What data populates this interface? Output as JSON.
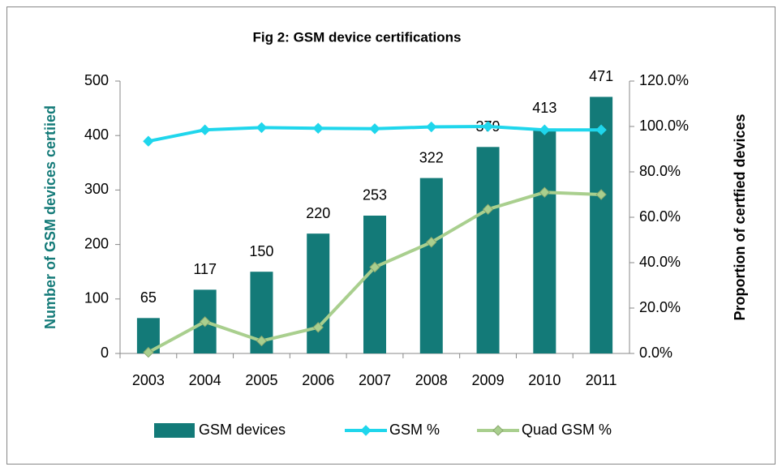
{
  "chart_data": {
    "type": "bar",
    "title": "Fig 2: GSM device certifications",
    "y_label": "Number of GSM devices certiied",
    "y2_label": "Proportion of certfied devices",
    "categories": [
      "2003",
      "2004",
      "2005",
      "2006",
      "2007",
      "2008",
      "2009",
      "2010",
      "2011"
    ],
    "series": [
      {
        "name": "GSM devices",
        "type": "bar",
        "color": "#137a78",
        "values": [
          65,
          117,
          150,
          220,
          253,
          322,
          379,
          413,
          471
        ]
      },
      {
        "name": "GSM %",
        "type": "line",
        "axis": "y2",
        "color": "#1fd6ec",
        "values": [
          93.5,
          98.5,
          99.5,
          99.2,
          99.0,
          99.8,
          100.0,
          98.5,
          98.5
        ]
      },
      {
        "name": "Quad GSM %",
        "type": "line",
        "axis": "y2",
        "color": "#a9cf8e",
        "values": [
          0.5,
          14.0,
          5.5,
          11.5,
          38.0,
          49.0,
          63.5,
          71.0,
          70.0
        ]
      }
    ],
    "ylim": [
      0,
      500
    ],
    "yticks": [
      0,
      100,
      200,
      300,
      400,
      500
    ],
    "y2lim": [
      0,
      120
    ],
    "y2ticks": [
      {
        "value": 0,
        "label": "0.0%"
      },
      {
        "value": 20,
        "label": "20.0%"
      },
      {
        "value": 40,
        "label": "40.0%"
      },
      {
        "value": 60,
        "label": "60.0%"
      },
      {
        "value": 80,
        "label": "80.0%"
      },
      {
        "value": 100,
        "label": "100.0%"
      },
      {
        "value": 120,
        "label": "120.0%"
      }
    ],
    "legend": "bottom"
  }
}
